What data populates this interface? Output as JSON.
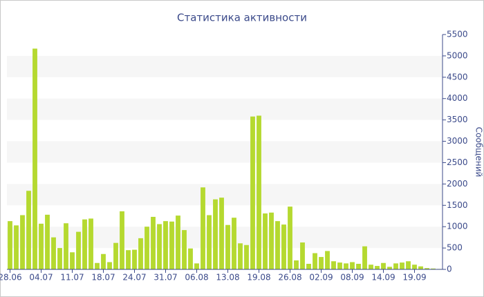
{
  "chart_data": {
    "type": "bar",
    "title": "Статистика активности",
    "y_axis_label": "Сообщений",
    "y_axis_side": "right",
    "categories": [
      "28.06",
      null,
      null,
      null,
      null,
      "04.07",
      null,
      null,
      null,
      null,
      "11.07",
      null,
      null,
      null,
      null,
      "18.07",
      null,
      null,
      null,
      null,
      "24.07",
      null,
      null,
      null,
      null,
      "31.07",
      null,
      null,
      null,
      null,
      "06.08",
      null,
      null,
      null,
      null,
      "13.08",
      null,
      null,
      null,
      null,
      "19.08",
      null,
      null,
      null,
      null,
      "26.08",
      null,
      null,
      null,
      null,
      "02.09",
      null,
      null,
      null,
      null,
      "08.09",
      null,
      null,
      null,
      null,
      "14.09",
      null,
      null,
      null,
      null,
      "19.09",
      null,
      null,
      null,
      null
    ],
    "values": [
      1130,
      1030,
      1270,
      1840,
      5170,
      1070,
      1280,
      750,
      500,
      1080,
      400,
      880,
      1170,
      1190,
      150,
      360,
      170,
      620,
      1360,
      450,
      460,
      730,
      1000,
      1230,
      1060,
      1130,
      1120,
      1260,
      920,
      490,
      140,
      1920,
      1270,
      1640,
      1680,
      1040,
      1210,
      610,
      570,
      3580,
      3600,
      1310,
      1330,
      1130,
      1050,
      1470,
      210,
      630,
      130,
      380,
      290,
      430,
      190,
      160,
      140,
      170,
      130,
      540,
      110,
      80,
      150,
      60,
      140,
      160,
      190,
      110,
      70,
      30,
      20,
      10
    ],
    "color": "#b5d930",
    "ylim": [
      0,
      5500
    ],
    "yticks": [
      0,
      500,
      1000,
      1500,
      2000,
      2500,
      3000,
      3500,
      4000,
      4500,
      5000,
      5500
    ],
    "grid": "bands"
  }
}
